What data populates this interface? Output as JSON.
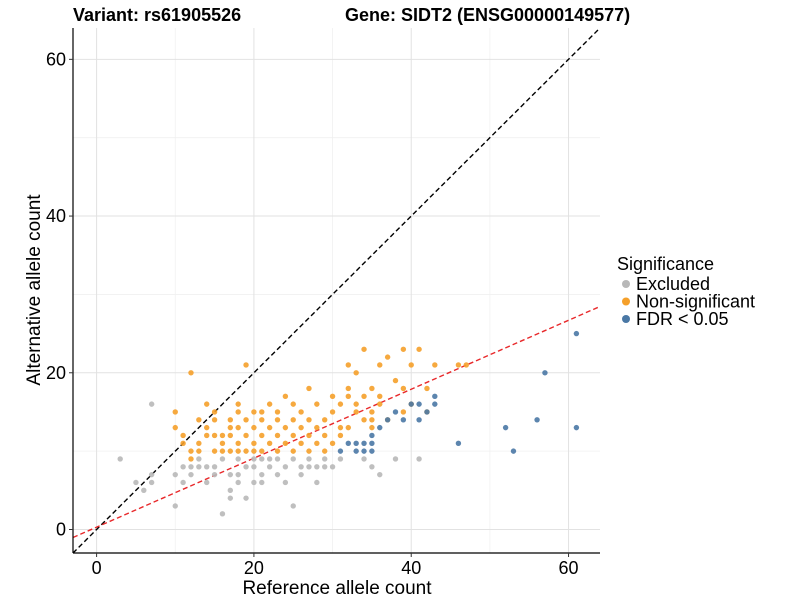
{
  "chart_data": {
    "type": "scatter",
    "title_left": "Variant: rs61905526",
    "title_right": "Gene: SIDT2 (ENSG00000149577)",
    "xlabel": "Reference allele count",
    "ylabel": "Alternative allele count",
    "xlim": [
      -3,
      64
    ],
    "ylim": [
      -3,
      64
    ],
    "x_ticks": [
      0,
      20,
      40,
      60
    ],
    "y_ticks": [
      0,
      20,
      40,
      60
    ],
    "grid": true,
    "legend": {
      "title": "Significance",
      "position": "right",
      "entries": [
        "Excluded",
        "Non-significant",
        "FDR < 0.05"
      ]
    },
    "colors": {
      "Excluded": "#b8b8b8",
      "Non-significant": "#f5a02a",
      "FDR < 0.05": "#4a78a5",
      "identity_line": "#000000",
      "fit_line": "#e8282a"
    },
    "reference_lines": [
      {
        "name": "identity",
        "slope": 1,
        "intercept": 0,
        "style": "dashed"
      },
      {
        "name": "fit",
        "slope": 0.44,
        "intercept": 0.3,
        "style": "dashed"
      }
    ],
    "series": [
      {
        "name": "Excluded",
        "points": [
          [
            3,
            9
          ],
          [
            5,
            6
          ],
          [
            6,
            5
          ],
          [
            7,
            7
          ],
          [
            7,
            6
          ],
          [
            7,
            16
          ],
          [
            10,
            7
          ],
          [
            10,
            3
          ],
          [
            11,
            6
          ],
          [
            11,
            8
          ],
          [
            12,
            8
          ],
          [
            12,
            7
          ],
          [
            13,
            8
          ],
          [
            13,
            9
          ],
          [
            14,
            6
          ],
          [
            14,
            8
          ],
          [
            15,
            8
          ],
          [
            15,
            7
          ],
          [
            16,
            9
          ],
          [
            16,
            2
          ],
          [
            17,
            7
          ],
          [
            17,
            5
          ],
          [
            17,
            4
          ],
          [
            18,
            9
          ],
          [
            18,
            7
          ],
          [
            18,
            6
          ],
          [
            19,
            4
          ],
          [
            19,
            8
          ],
          [
            20,
            8
          ],
          [
            20,
            6
          ],
          [
            20,
            9
          ],
          [
            21,
            9
          ],
          [
            21,
            7
          ],
          [
            21,
            6
          ],
          [
            22,
            8
          ],
          [
            22,
            9
          ],
          [
            23,
            9
          ],
          [
            23,
            7
          ],
          [
            24,
            8
          ],
          [
            24,
            6
          ],
          [
            25,
            9
          ],
          [
            25,
            3
          ],
          [
            26,
            7
          ],
          [
            26,
            8
          ],
          [
            27,
            9
          ],
          [
            27,
            8
          ],
          [
            28,
            6
          ],
          [
            28,
            8
          ],
          [
            29,
            8
          ],
          [
            29,
            9
          ],
          [
            30,
            8
          ],
          [
            31,
            9
          ],
          [
            34,
            9
          ],
          [
            35,
            8
          ],
          [
            36,
            7
          ],
          [
            38,
            9
          ],
          [
            41,
            9
          ]
        ]
      },
      {
        "name": "Non-significant",
        "points": [
          [
            10,
            15
          ],
          [
            10,
            13
          ],
          [
            11,
            12
          ],
          [
            11,
            11
          ],
          [
            12,
            20
          ],
          [
            12,
            10
          ],
          [
            12,
            9
          ],
          [
            13,
            10
          ],
          [
            13,
            11
          ],
          [
            13,
            14
          ],
          [
            14,
            16
          ],
          [
            14,
            12
          ],
          [
            14,
            13
          ],
          [
            15,
            10
          ],
          [
            15,
            14
          ],
          [
            15,
            12
          ],
          [
            15,
            15
          ],
          [
            16,
            11
          ],
          [
            16,
            10
          ],
          [
            16,
            12
          ],
          [
            17,
            13
          ],
          [
            17,
            14
          ],
          [
            17,
            12
          ],
          [
            17,
            10
          ],
          [
            18,
            15
          ],
          [
            18,
            13
          ],
          [
            18,
            11
          ],
          [
            18,
            10
          ],
          [
            18,
            16
          ],
          [
            19,
            12
          ],
          [
            19,
            21
          ],
          [
            19,
            14
          ],
          [
            19,
            10
          ],
          [
            20,
            13
          ],
          [
            20,
            11
          ],
          [
            20,
            15
          ],
          [
            20,
            10
          ],
          [
            21,
            14
          ],
          [
            21,
            12
          ],
          [
            21,
            10
          ],
          [
            21,
            15
          ],
          [
            22,
            11
          ],
          [
            22,
            13
          ],
          [
            22,
            16
          ],
          [
            23,
            12
          ],
          [
            23,
            15
          ],
          [
            23,
            10
          ],
          [
            23,
            14
          ],
          [
            24,
            11
          ],
          [
            24,
            13
          ],
          [
            24,
            17
          ],
          [
            25,
            12
          ],
          [
            25,
            16
          ],
          [
            25,
            10
          ],
          [
            25,
            14
          ],
          [
            26,
            13
          ],
          [
            26,
            11
          ],
          [
            26,
            15
          ],
          [
            27,
            12
          ],
          [
            27,
            10
          ],
          [
            27,
            18
          ],
          [
            27,
            14
          ],
          [
            28,
            13
          ],
          [
            28,
            11
          ],
          [
            28,
            16
          ],
          [
            29,
            10
          ],
          [
            29,
            12
          ],
          [
            29,
            14
          ],
          [
            30,
            15
          ],
          [
            30,
            17
          ],
          [
            30,
            11
          ],
          [
            31,
            13
          ],
          [
            31,
            16
          ],
          [
            31,
            12
          ],
          [
            32,
            13
          ],
          [
            32,
            18
          ],
          [
            32,
            17
          ],
          [
            32,
            21
          ],
          [
            33,
            20
          ],
          [
            33,
            15
          ],
          [
            33,
            16
          ],
          [
            34,
            14
          ],
          [
            34,
            23
          ],
          [
            34,
            17
          ],
          [
            35,
            18
          ],
          [
            35,
            13
          ],
          [
            35,
            15
          ],
          [
            35,
            14
          ],
          [
            36,
            16
          ],
          [
            36,
            21
          ],
          [
            36,
            17
          ],
          [
            37,
            22
          ],
          [
            37,
            14
          ],
          [
            38,
            19
          ],
          [
            39,
            18
          ],
          [
            39,
            23
          ],
          [
            39,
            15
          ],
          [
            40,
            16
          ],
          [
            40,
            21
          ],
          [
            41,
            23
          ],
          [
            42,
            15
          ],
          [
            42,
            18
          ],
          [
            43,
            21
          ],
          [
            46,
            21
          ],
          [
            47,
            21
          ]
        ]
      },
      {
        "name": "FDR < 0.05",
        "points": [
          [
            31,
            10
          ],
          [
            32,
            11
          ],
          [
            33,
            10
          ],
          [
            33,
            11
          ],
          [
            34,
            10
          ],
          [
            34,
            11
          ],
          [
            35,
            12
          ],
          [
            35,
            10
          ],
          [
            35,
            11
          ],
          [
            36,
            13
          ],
          [
            37,
            14
          ],
          [
            38,
            15
          ],
          [
            39,
            14
          ],
          [
            40,
            16
          ],
          [
            41,
            16
          ],
          [
            41,
            14
          ],
          [
            42,
            15
          ],
          [
            43,
            17
          ],
          [
            43,
            16
          ],
          [
            46,
            11
          ],
          [
            52,
            13
          ],
          [
            53,
            10
          ],
          [
            56,
            14
          ],
          [
            57,
            20
          ],
          [
            61,
            25
          ],
          [
            61,
            13
          ]
        ]
      }
    ]
  }
}
